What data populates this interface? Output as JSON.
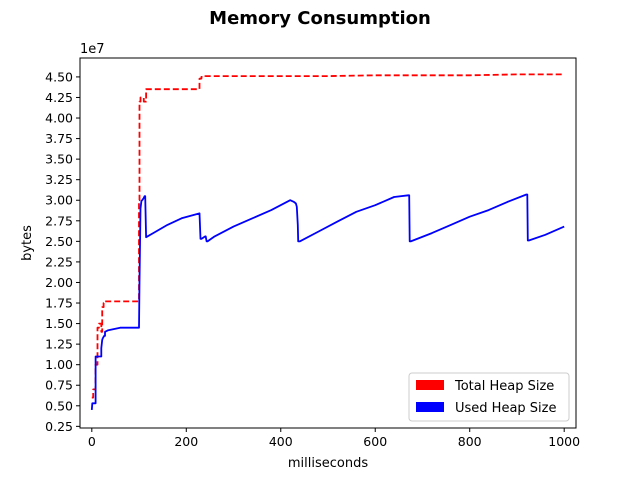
{
  "chart_data": {
    "type": "line",
    "title": "Memory Consumption",
    "xlabel": "milliseconds",
    "ylabel": "bytes",
    "y_offset_label": "1e7",
    "xlim": [
      -25,
      1025
    ],
    "ylim": [
      2300000,
      47300000
    ],
    "x_ticks": [
      0,
      200,
      400,
      600,
      800,
      1000
    ],
    "x_tick_labels": [
      "0",
      "200",
      "400",
      "600",
      "800",
      "1000"
    ],
    "y_ticks": [
      2500000,
      5000000,
      7500000,
      10000000,
      12500000,
      15000000,
      17500000,
      20000000,
      22500000,
      25000000,
      27500000,
      30000000,
      32500000,
      35000000,
      37500000,
      40000000,
      42500000,
      45000000
    ],
    "y_tick_labels": [
      "0.25",
      "0.50",
      "0.75",
      "1.00",
      "1.25",
      "1.50",
      "1.75",
      "2.00",
      "2.25",
      "2.50",
      "2.75",
      "3.00",
      "3.25",
      "3.50",
      "3.75",
      "4.00",
      "4.25",
      "4.50"
    ],
    "grid": false,
    "legend_position": "lower right",
    "series": [
      {
        "name": "Total Heap Size",
        "color": "#ff0000",
        "style": "dashed",
        "legend_label": "Total Heap Size",
        "x": [
          0,
          3,
          3,
          8,
          8,
          12,
          12,
          15,
          15,
          20,
          20,
          22,
          22,
          25,
          25,
          28,
          28,
          100,
          100,
          101,
          101,
          103,
          103,
          110,
          110,
          115,
          115,
          228,
          228,
          232,
          232,
          240,
          240,
          300,
          400,
          500,
          600,
          700,
          800,
          900,
          1000
        ],
        "y": [
          6000000,
          6000000,
          7000000,
          7000000,
          10000000,
          10000000,
          14500000,
          14500000,
          15000000,
          15000000,
          14000000,
          14000000,
          17000000,
          17000000,
          17500000,
          17500000,
          17700000,
          17700000,
          30000000,
          30000000,
          42000000,
          42000000,
          42500000,
          42500000,
          42000000,
          42000000,
          43500000,
          43500000,
          44800000,
          44800000,
          45000000,
          45000000,
          45100000,
          45100000,
          45100000,
          45100000,
          45200000,
          45200000,
          45200000,
          45300000,
          45300000
        ]
      },
      {
        "name": "Used Heap Size",
        "color": "#0000ff",
        "style": "solid",
        "legend_label": "Used Heap Size",
        "x": [
          0,
          1,
          2,
          8,
          8,
          10,
          10,
          20,
          20,
          22,
          23,
          26,
          28,
          28,
          35,
          60,
          100,
          101,
          103,
          105,
          108,
          110,
          112,
          113,
          115,
          130,
          160,
          190,
          228,
          230,
          232,
          240,
          241,
          243,
          245,
          260,
          300,
          340,
          380,
          420,
          428,
          432,
          434,
          436,
          437,
          440,
          480,
          520,
          560,
          600,
          640,
          670,
          672,
          673,
          675,
          720,
          760,
          800,
          840,
          880,
          920,
          922,
          923,
          925,
          960,
          1000
        ],
        "y": [
          4500000,
          5300000,
          5300000,
          5300000,
          11000000,
          11000000,
          11000000,
          11000000,
          12000000,
          13000000,
          13200000,
          13500000,
          13500000,
          14000000,
          14200000,
          14500000,
          14500000,
          20000000,
          29000000,
          29900000,
          30100000,
          30300000,
          30500000,
          30500000,
          25500000,
          26000000,
          27000000,
          27800000,
          28400000,
          25300000,
          25300000,
          25600000,
          25600000,
          25000000,
          25000000,
          25600000,
          26800000,
          27800000,
          28800000,
          30000000,
          29800000,
          29600000,
          29200000,
          27000000,
          25000000,
          25000000,
          26200000,
          27400000,
          28600000,
          29400000,
          30400000,
          30600000,
          30600000,
          25000000,
          25000000,
          26000000,
          27000000,
          28000000,
          28800000,
          29800000,
          30700000,
          30700000,
          25100000,
          25100000,
          25800000,
          26800000
        ]
      }
    ]
  }
}
